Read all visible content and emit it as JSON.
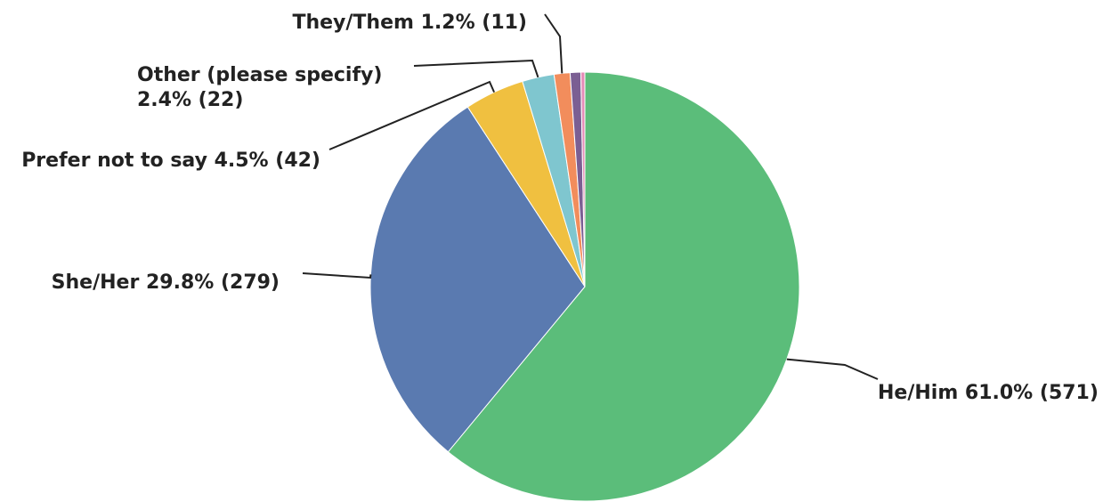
{
  "chart_data": {
    "type": "pie",
    "title": "",
    "legend": "none",
    "slices": [
      {
        "name": "He/Him",
        "percent": 61.0,
        "count": 571,
        "color": "#5bbd7a",
        "label_lines": [
          "He/Him 61.0% (571)"
        ]
      },
      {
        "name": "She/Her",
        "percent": 29.8,
        "count": 279,
        "color": "#5a7ab0",
        "label_lines": [
          "She/Her 29.8% (279)"
        ]
      },
      {
        "name": "Prefer not to say",
        "percent": 4.5,
        "count": 42,
        "color": "#f0c040",
        "label_lines": [
          "Prefer not to say 4.5% (42)"
        ]
      },
      {
        "name": "Other (please specify)",
        "percent": 2.4,
        "count": 22,
        "color": "#7fc6cf",
        "label_lines": [
          "Other (please specify)",
          "2.4% (22)"
        ]
      },
      {
        "name": "They/Them",
        "percent": 1.2,
        "count": 11,
        "color": "#f28d5c",
        "label_lines": [
          "They/Them 1.2% (11)"
        ]
      },
      {
        "name": "",
        "percent": 0.8,
        "count": null,
        "color": "#7b5f93",
        "label_lines": []
      },
      {
        "name": "",
        "percent": 0.3,
        "count": null,
        "color": "#e58db8",
        "label_lines": []
      }
    ]
  }
}
